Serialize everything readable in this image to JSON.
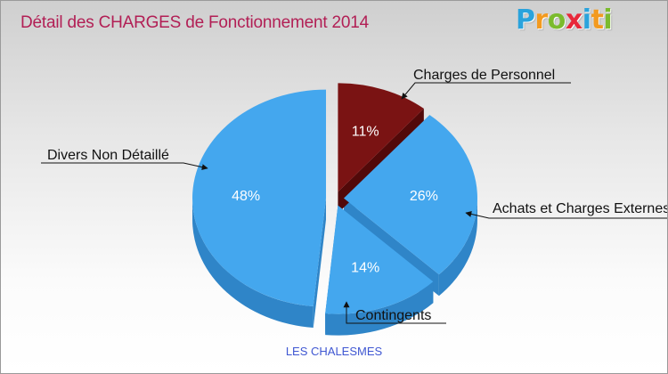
{
  "header": {
    "title": "Détail des CHARGES de Fonctionnement 2014",
    "logo": "Proxiti"
  },
  "footer": {
    "commune": "LES CHALESMES"
  },
  "colors": {
    "blue": "#44a7ee",
    "blue_side": "#2f85c8",
    "red": "#7a1313",
    "red_side": "#520909",
    "title": "#b21f55"
  },
  "chart_data": {
    "type": "pie",
    "title": "Détail des CHARGES de Fonctionnement 2014",
    "subtitle": "LES CHALESMES",
    "slices": [
      {
        "label": "Charges de Personnel",
        "value": 11,
        "percent_label": "11%"
      },
      {
        "label": "Achats et Charges Externes",
        "value": 26,
        "percent_label": "26%"
      },
      {
        "label": "Contingents",
        "value": 14,
        "percent_label": "14%"
      },
      {
        "label": "Divers Non Détaillé",
        "value": 48,
        "percent_label": "48%"
      }
    ]
  }
}
